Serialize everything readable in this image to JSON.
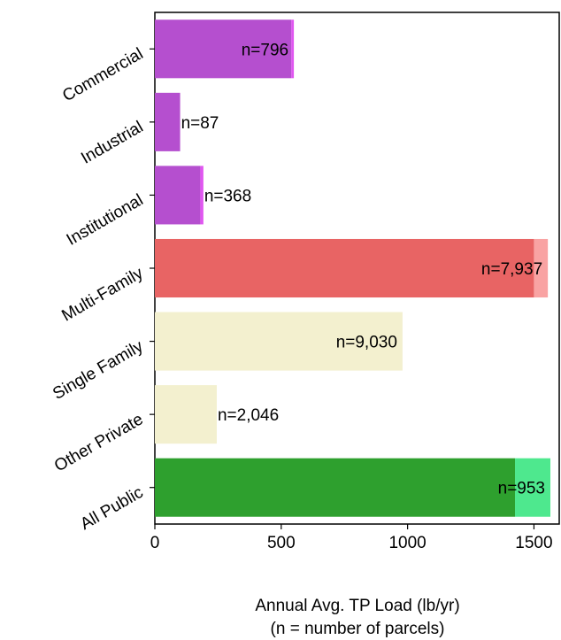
{
  "chart_data": {
    "type": "bar",
    "orientation": "horizontal",
    "stacked": true,
    "categories": [
      "Commercial",
      "Industrial",
      "Institutional",
      "Multi-Family",
      "Single Family",
      "Other Private",
      "All Public"
    ],
    "series": [
      {
        "values": [
          540,
          100,
          180,
          1500,
          980,
          245,
          1425
        ]
      },
      {
        "values": [
          10,
          0,
          12,
          55,
          0,
          0,
          140
        ]
      }
    ],
    "colors": [
      [
        "#b54fcf",
        "#e055f0"
      ],
      [
        "#b54fcf",
        "#e055f0"
      ],
      [
        "#b54fcf",
        "#e055f0"
      ],
      [
        "#e86464",
        "#f9a3a3"
      ],
      [
        "#f3f0cf",
        "#f3f0cf"
      ],
      [
        "#f3f0cf",
        "#f3f0cf"
      ],
      [
        "#2ea02e",
        "#4ee88e"
      ]
    ],
    "data_labels": [
      "n=796",
      "n=87",
      "n=368",
      "n=7,937",
      "n=9,030",
      "n=2,046",
      "n=953"
    ],
    "data_label_position": [
      "inside-end",
      "outside",
      "outside",
      "inside-end",
      "inside-end",
      "outside",
      "inside-end"
    ],
    "xticks": [
      0,
      500,
      1000,
      1500
    ],
    "xtick_labels": [
      "0",
      "500",
      "1000",
      "1500"
    ],
    "xlim": [
      0,
      1600
    ],
    "xlabel": "Annual Avg. TP Load (lb/yr)",
    "xlabel_line2": "(n = number of parcels)",
    "grid": false
  }
}
